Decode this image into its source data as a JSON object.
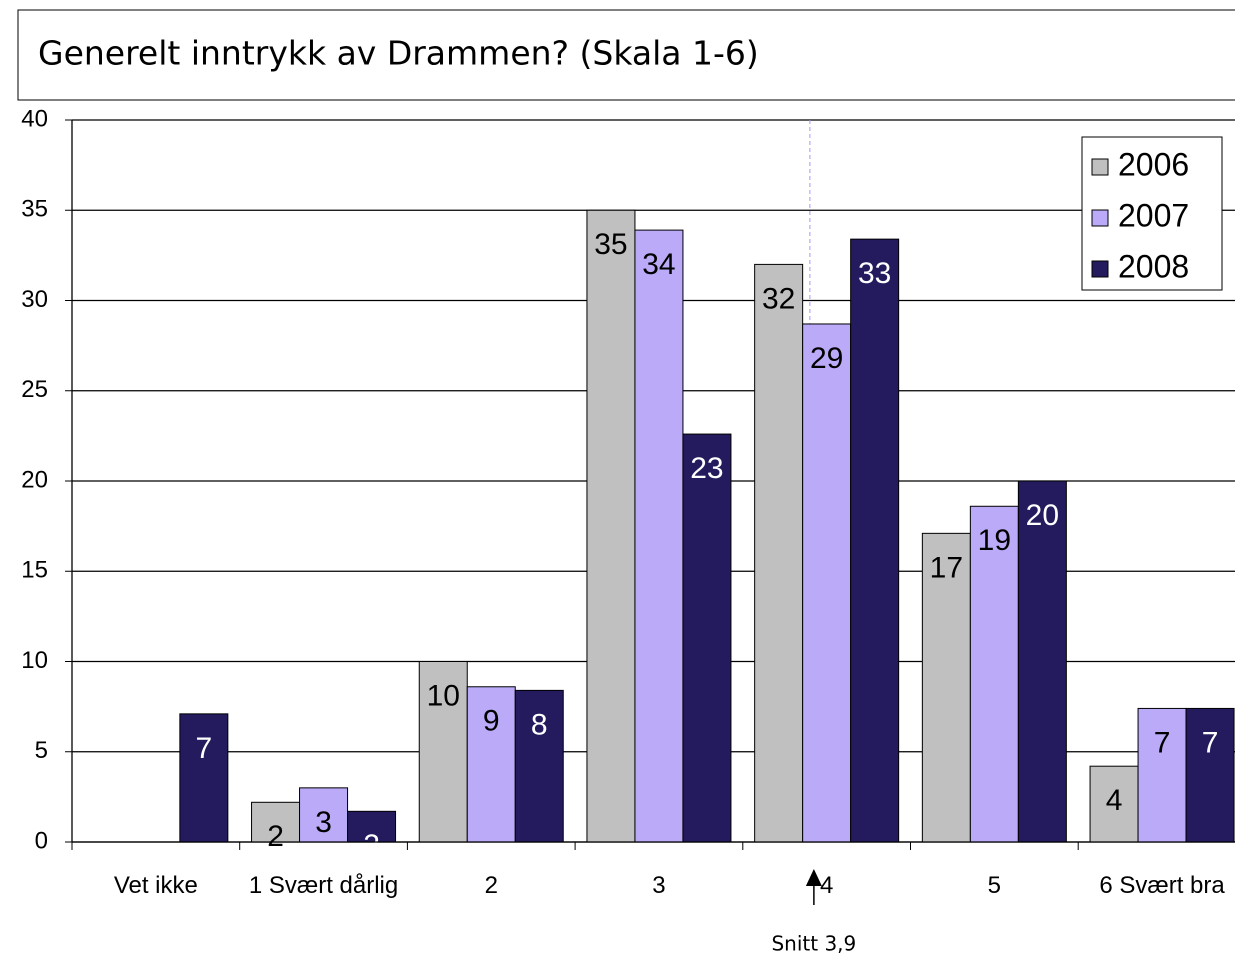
{
  "chart_data": {
    "type": "bar",
    "title": "Generelt inntrykk av Drammen? (Skala 1-6)",
    "categories": [
      "Vet ikke",
      "1 Svært dårlig",
      "2",
      "3",
      "4",
      "5",
      "6 Svært bra"
    ],
    "series": [
      {
        "name": "2006",
        "color": "#c0c0c0",
        "label_color": "#000000",
        "values": [
          null,
          2.2,
          10.0,
          35.0,
          32.0,
          17.1,
          4.2
        ],
        "value_labels": [
          null,
          "2",
          "10",
          "35",
          "32",
          "17",
          "4"
        ]
      },
      {
        "name": "2007",
        "color": "#bbaaf8",
        "label_color": "#000000",
        "values": [
          null,
          3.0,
          8.6,
          33.9,
          28.7,
          18.6,
          7.4
        ],
        "value_labels": [
          null,
          "3",
          "9",
          "34",
          "29",
          "19",
          "7"
        ]
      },
      {
        "name": "2008",
        "color": "#231b5e",
        "label_color": "#ffffff",
        "values": [
          7.1,
          1.7,
          8.4,
          22.6,
          33.4,
          20.0,
          7.4
        ],
        "value_labels": [
          "7",
          "2",
          "8",
          "23",
          "33",
          "20",
          "7"
        ]
      }
    ],
    "ylim": [
      0,
      40
    ],
    "yticks": [
      0,
      5,
      10,
      15,
      20,
      25,
      30,
      35,
      40
    ],
    "grid": true,
    "legend": "top-right",
    "annotation": {
      "value": 3.9,
      "label": "Snitt 3,9"
    }
  }
}
